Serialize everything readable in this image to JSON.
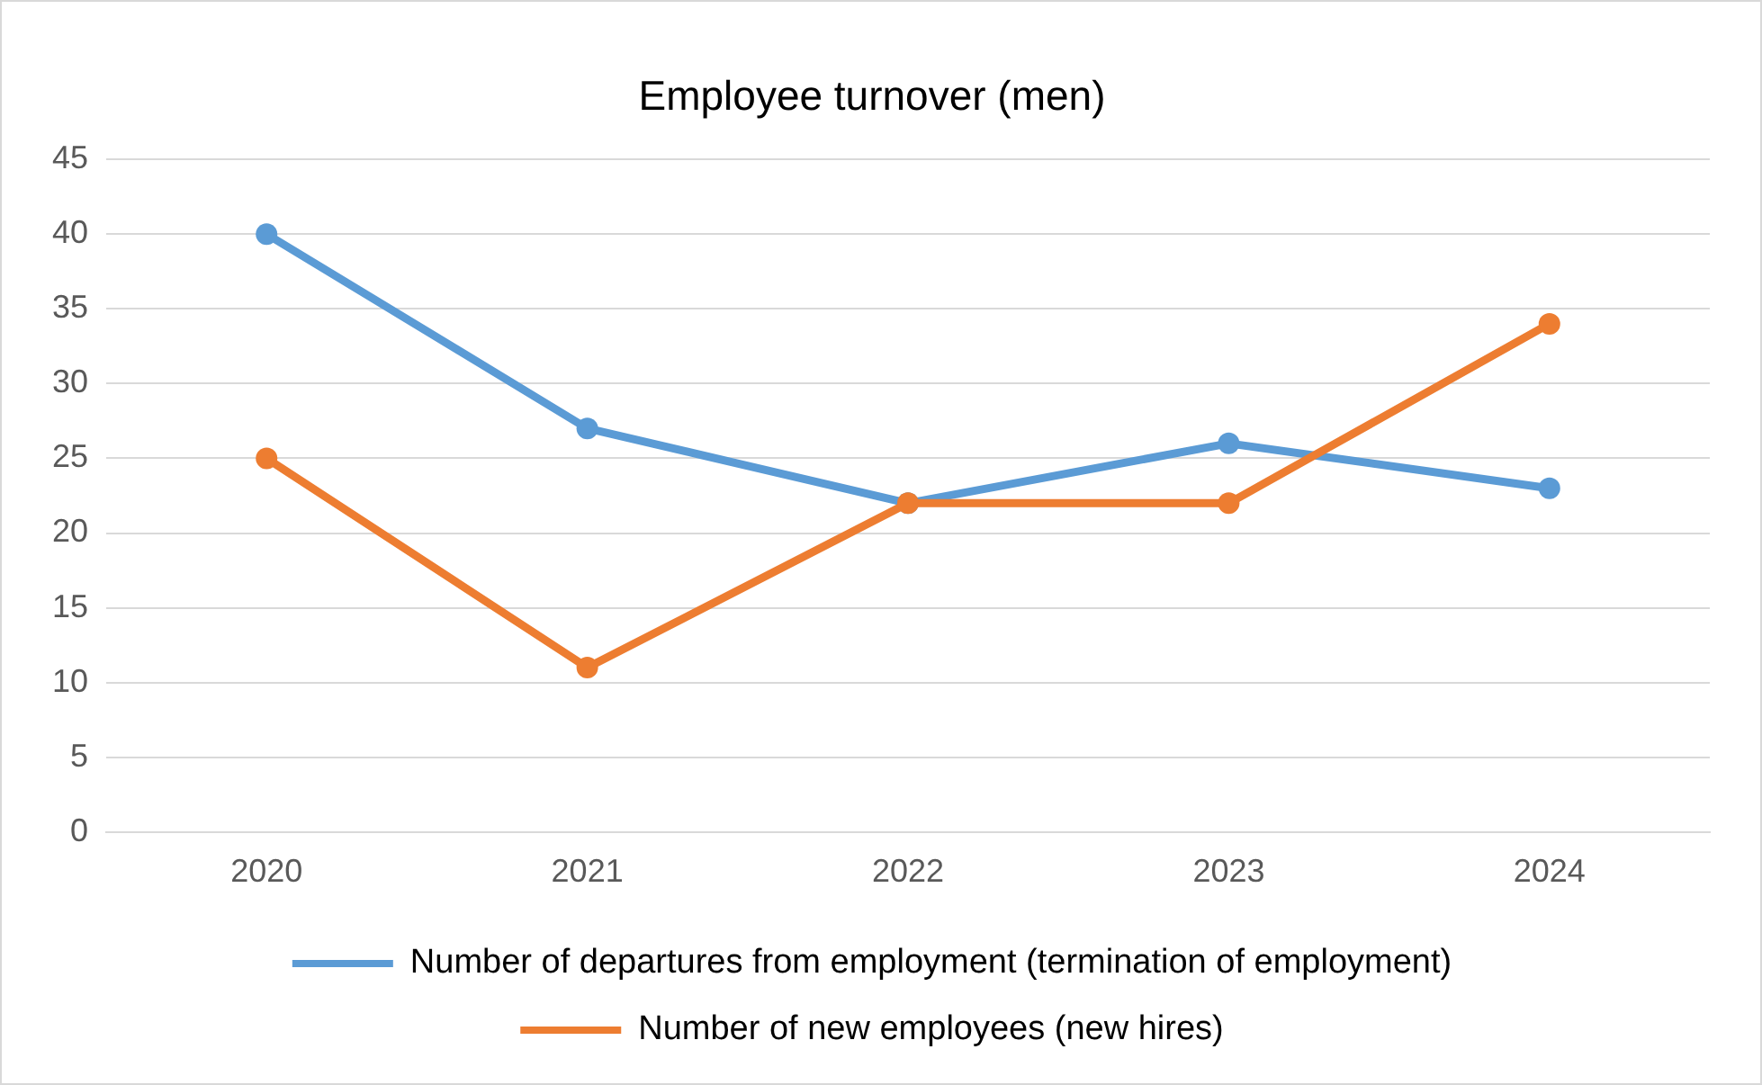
{
  "chart_data": {
    "type": "line",
    "title": "Employee turnover (men)",
    "categories": [
      "2020",
      "2021",
      "2022",
      "2023",
      "2024"
    ],
    "series": [
      {
        "name": "Number of departures from employment (termination of employment)",
        "color": "#5b9bd5",
        "values": [
          40,
          27,
          22,
          26,
          23
        ]
      },
      {
        "name": "Number of new employees (new hires)",
        "color": "#ed7d31",
        "values": [
          25,
          11,
          22,
          22,
          34
        ]
      }
    ],
    "ylim": [
      0,
      45
    ],
    "yticks": [
      0,
      5,
      10,
      15,
      20,
      25,
      30,
      35,
      40,
      45
    ],
    "grid": "y",
    "legend": "bottom",
    "marker": "circle",
    "line_style": "solid"
  }
}
